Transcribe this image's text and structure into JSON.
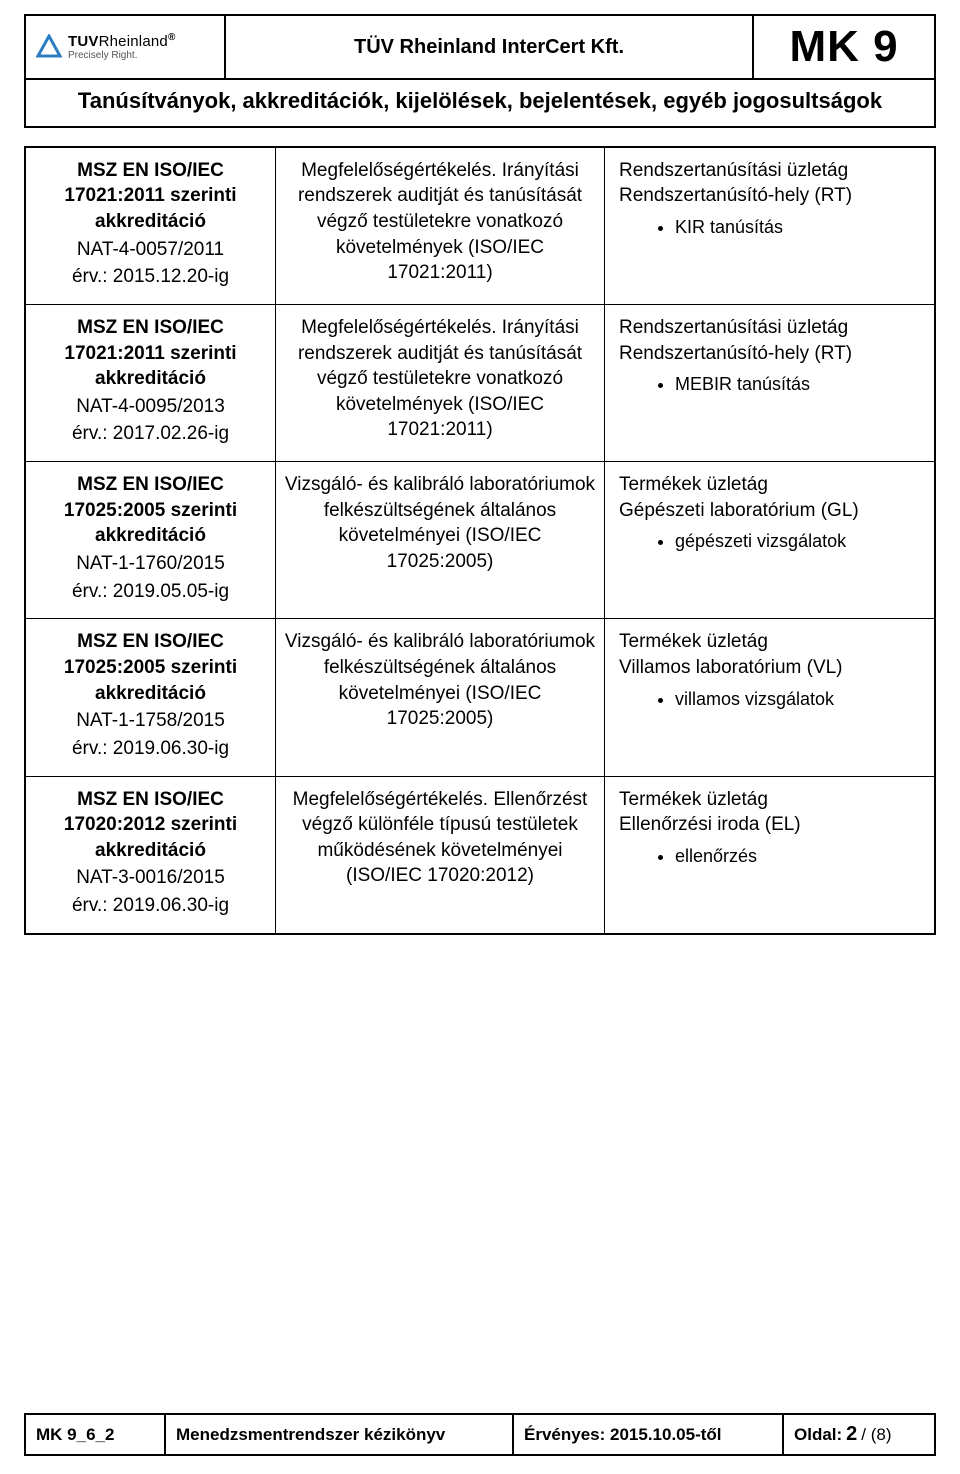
{
  "colors": {
    "text": "#000000",
    "background": "#ffffff",
    "logo_triangle": "#2b7ec1",
    "logo_sub": "#555555"
  },
  "header": {
    "logo_main_left": "TUV",
    "logo_main_right": "Rheinland",
    "logo_reg": "®",
    "logo_sub": "Precisely Right.",
    "center_title": "TÜV Rheinland InterCert Kft.",
    "doc_code": "MK 9"
  },
  "title": "Tanúsítványok, akkreditációk, kijelölések, bejelentések, egyéb jogosultságok",
  "rows": [
    {
      "left_line1": "MSZ EN ISO/IEC",
      "left_line2": "17021:2011 szerinti",
      "left_line3": "akkreditáció",
      "nat": "NAT-4-0057/2011",
      "erv": "érv.: 2015.12.20-ig",
      "mid": "Megfelelőségértékelés. Irányítási rendszerek auditját és tanúsítását végző testületekre vonatkozó követelmények (ISO/IEC 17021:2011)",
      "right_line1": "Rendszertanúsítási üzletág",
      "right_line2": "Rendszertanúsító-hely (RT)",
      "bullets": [
        "KIR tanúsítás"
      ]
    },
    {
      "left_line1": "MSZ EN ISO/IEC",
      "left_line2": "17021:2011 szerinti",
      "left_line3": "akkreditáció",
      "nat": "NAT-4-0095/2013",
      "erv": "érv.: 2017.02.26-ig",
      "mid": "Megfelelőségértékelés. Irányítási rendszerek auditját és tanúsítását végző testületekre vonatkozó követelmények (ISO/IEC 17021:2011)",
      "right_line1": "Rendszertanúsítási üzletág",
      "right_line2": "Rendszertanúsító-hely (RT)",
      "bullets": [
        "MEBIR tanúsítás"
      ]
    },
    {
      "left_line1": "MSZ EN ISO/IEC",
      "left_line2": "17025:2005 szerinti",
      "left_line3": "akkreditáció",
      "nat": "NAT-1-1760/2015",
      "erv": "érv.: 2019.05.05-ig",
      "mid": "Vizsgáló- és kalibráló laboratóriumok felkészültségének általános követelményei (ISO/IEC 17025:2005)",
      "right_line1": "Termékek üzletág",
      "right_line2": "Gépészeti laboratórium (GL)",
      "bullets": [
        "gépészeti vizsgálatok"
      ]
    },
    {
      "left_line1": "MSZ EN ISO/IEC",
      "left_line2": "17025:2005 szerinti",
      "left_line3": "akkreditáció",
      "nat": "NAT-1-1758/2015",
      "erv": "érv.: 2019.06.30-ig",
      "mid": "Vizsgáló- és kalibráló laboratóriumok felkészültségének általános követelményei (ISO/IEC 17025:2005)",
      "right_line1": "Termékek üzletág",
      "right_line2": "Villamos laboratórium (VL)",
      "bullets": [
        "villamos vizsgálatok"
      ]
    },
    {
      "left_line1": "MSZ EN ISO/IEC",
      "left_line2": "17020:2012 szerinti",
      "left_line3": "akkreditáció",
      "nat": "NAT-3-0016/2015",
      "erv": "érv.: 2019.06.30-ig",
      "mid": "Megfelelőségértékelés. Ellenőrzést végző különféle típusú testületek működésének követelményei (ISO/IEC 17020:2012)",
      "right_line1": "Termékek üzletág",
      "right_line2": "Ellenőrzési iroda (EL)",
      "bullets": [
        "ellenőrzés"
      ]
    }
  ],
  "footer": {
    "code": "MK 9_6_2",
    "manual": "Menedzsmentrendszer kézikönyv",
    "valid": "Érvényes: 2015.10.05-től",
    "page_label": "Oldal:",
    "page_current": "2",
    "page_sep": "/ (8)"
  }
}
